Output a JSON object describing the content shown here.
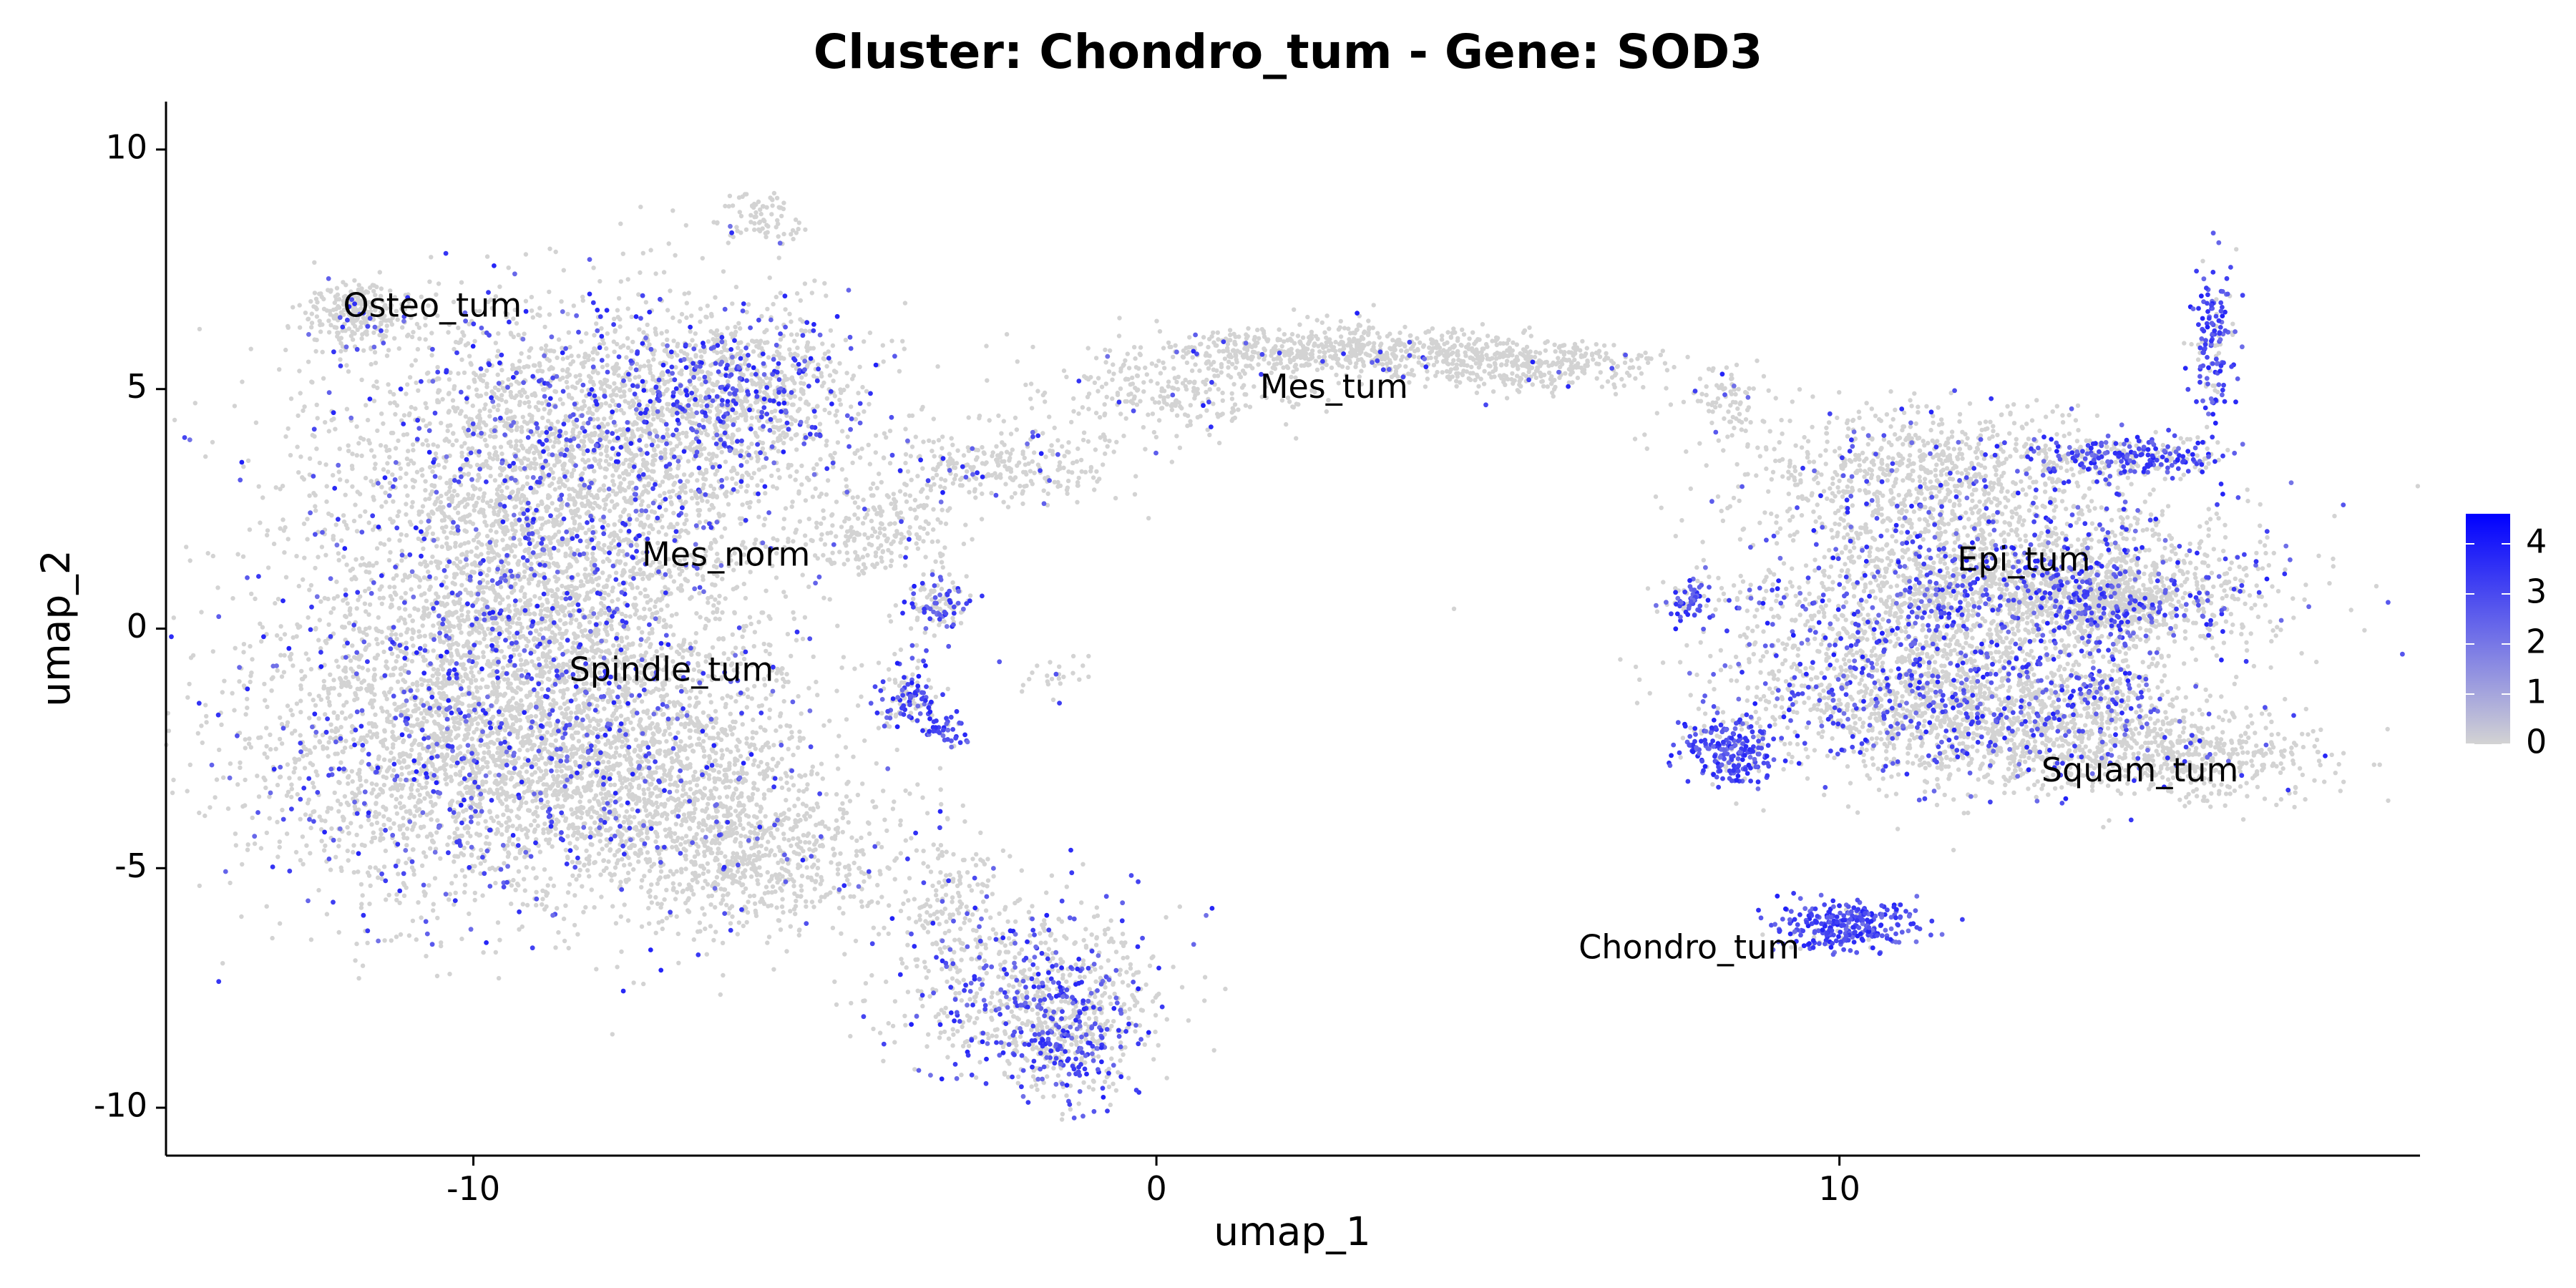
{
  "chart_data": {
    "type": "scatter",
    "title": "Cluster: Chondro_tum - Gene: SOD3",
    "xlabel": "umap_1",
    "ylabel": "umap_2",
    "xlim": [
      -14.5,
      18.5
    ],
    "ylim": [
      -11,
      11
    ],
    "xticks": [
      {
        "value": -10,
        "label": "-10"
      },
      {
        "value": 0,
        "label": "0"
      },
      {
        "value": 10,
        "label": "10"
      }
    ],
    "yticks": [
      {
        "value": -10,
        "label": "-10"
      },
      {
        "value": -5,
        "label": "-5"
      },
      {
        "value": 0,
        "label": "0"
      },
      {
        "value": 5,
        "label": "5"
      },
      {
        "value": 10,
        "label": "10"
      }
    ],
    "grid": false,
    "legend": {
      "placement": "right",
      "min": 0,
      "max": 4.6,
      "ticks": [
        {
          "value": 0,
          "label": "0"
        },
        {
          "value": 1,
          "label": "1"
        },
        {
          "value": 2,
          "label": "2"
        },
        {
          "value": 3,
          "label": "3"
        },
        {
          "value": 4,
          "label": "4"
        }
      ],
      "color_low": "#d3d3d3",
      "color_high": "#0000ff"
    },
    "cluster_labels": [
      {
        "label": "Osteo_tum",
        "x": -10.6,
        "y": 6.7
      },
      {
        "label": "Mes_tum",
        "x": 2.6,
        "y": 5.0
      },
      {
        "label": "Mes_norm",
        "x": -6.3,
        "y": 1.5
      },
      {
        "label": "Spindle_tum",
        "x": -7.1,
        "y": -0.9
      },
      {
        "label": "Epi_tum",
        "x": 12.7,
        "y": 1.4
      },
      {
        "label": "Squam_tum",
        "x": 14.4,
        "y": -3.0
      },
      {
        "label": "Chondro_tum",
        "x": 7.8,
        "y": -6.7
      }
    ],
    "clusters": [
      {
        "cx": -11.6,
        "cy": 6.6,
        "sx": 0.45,
        "sy": 0.35,
        "n": 260,
        "expr": 0.05
      },
      {
        "cx": -5.8,
        "cy": 8.6,
        "sx": 0.3,
        "sy": 0.3,
        "n": 80,
        "expr": 0.05
      },
      {
        "cx": -8.6,
        "cy": 3.6,
        "sx": 1.8,
        "sy": 1.6,
        "n": 2600,
        "expr": 0.16
      },
      {
        "cx": -6.2,
        "cy": 5.0,
        "sx": 1.0,
        "sy": 0.8,
        "n": 900,
        "expr": 0.28
      },
      {
        "cx": -9.0,
        "cy": 0.2,
        "sx": 1.7,
        "sy": 1.4,
        "n": 1800,
        "expr": 0.12
      },
      {
        "cx": -10.2,
        "cy": -2.6,
        "sx": 1.7,
        "sy": 1.6,
        "n": 2400,
        "expr": 0.14
      },
      {
        "cx": -7.4,
        "cy": -3.0,
        "sx": 1.3,
        "sy": 1.2,
        "n": 1300,
        "expr": 0.08
      },
      {
        "cx": -6.0,
        "cy": -4.8,
        "sx": 1.2,
        "sy": 0.8,
        "n": 700,
        "expr": 0.04
      },
      {
        "cx": -4.0,
        "cy": 2.0,
        "sx": 0.6,
        "sy": 0.5,
        "n": 200,
        "expr": 0.05
      },
      {
        "cx": -3.2,
        "cy": 0.5,
        "sx": 0.25,
        "sy": 0.3,
        "n": 110,
        "expr": 0.45
      },
      {
        "cx": -3.6,
        "cy": -1.4,
        "sx": 0.25,
        "sy": 0.4,
        "n": 130,
        "expr": 0.65
      },
      {
        "cx": -3.1,
        "cy": -2.1,
        "sx": 0.15,
        "sy": 0.2,
        "n": 40,
        "expr": 0.8
      },
      {
        "cx": -1.9,
        "cy": -7.5,
        "sx": 1.0,
        "sy": 0.9,
        "n": 700,
        "expr": 0.3
      },
      {
        "cx": -1.3,
        "cy": -8.6,
        "sx": 0.5,
        "sy": 0.6,
        "n": 350,
        "expr": 0.45
      },
      {
        "cx": -3.0,
        "cy": -5.5,
        "sx": 0.4,
        "sy": 0.7,
        "n": 120,
        "expr": 0.1
      },
      {
        "cx": -2.3,
        "cy": 3.4,
        "sx": 1.1,
        "sy": 0.45,
        "n": 300,
        "expr": 0.06
      },
      {
        "cx": 0.2,
        "cy": 4.9,
        "sx": 0.9,
        "sy": 0.35,
        "n": 220,
        "expr": 0.05
      },
      {
        "cx": 2.8,
        "cy": 5.8,
        "sx": 1.6,
        "sy": 0.25,
        "n": 700,
        "expr": 0.03
      },
      {
        "cx": 5.5,
        "cy": 5.5,
        "sx": 1.0,
        "sy": 0.25,
        "n": 300,
        "expr": 0.03
      },
      {
        "cx": 8.3,
        "cy": 4.8,
        "sx": 0.35,
        "sy": 0.35,
        "n": 80,
        "expr": 0.05
      },
      {
        "cx": 11.3,
        "cy": 3.2,
        "sx": 1.4,
        "sy": 0.7,
        "n": 900,
        "expr": 0.08
      },
      {
        "cx": 12.6,
        "cy": 0.9,
        "sx": 1.8,
        "sy": 0.9,
        "n": 2000,
        "expr": 0.22
      },
      {
        "cx": 13.9,
        "cy": 0.6,
        "sx": 0.8,
        "sy": 0.35,
        "n": 500,
        "expr": 0.12
      },
      {
        "cx": 10.6,
        "cy": -1.0,
        "sx": 1.3,
        "sy": 0.9,
        "n": 900,
        "expr": 0.3
      },
      {
        "cx": 12.5,
        "cy": -2.0,
        "sx": 1.3,
        "sy": 0.7,
        "n": 1100,
        "expr": 0.14
      },
      {
        "cx": 15.1,
        "cy": -2.7,
        "sx": 1.0,
        "sy": 0.45,
        "n": 500,
        "expr": 0.04
      },
      {
        "cx": 14.0,
        "cy": -1.0,
        "sx": 0.4,
        "sy": 0.6,
        "n": 150,
        "expr": 0.45
      },
      {
        "cx": 14.2,
        "cy": 3.6,
        "sx": 0.7,
        "sy": 0.2,
        "n": 260,
        "expr": 0.6
      },
      {
        "cx": 15.5,
        "cy": 6.0,
        "sx": 0.18,
        "sy": 0.8,
        "n": 150,
        "expr": 0.8
      },
      {
        "cx": 8.4,
        "cy": -2.6,
        "sx": 0.35,
        "sy": 0.4,
        "n": 230,
        "expr": 0.85
      },
      {
        "cx": 7.8,
        "cy": 0.6,
        "sx": 0.15,
        "sy": 0.25,
        "n": 60,
        "expr": 0.6
      },
      {
        "cx": 10.1,
        "cy": -6.2,
        "sx": 0.5,
        "sy": 0.25,
        "n": 300,
        "expr": 0.88
      },
      {
        "cx": -1.5,
        "cy": -1.0,
        "sx": 0.3,
        "sy": 0.3,
        "n": 25,
        "expr": 0.05
      }
    ]
  }
}
